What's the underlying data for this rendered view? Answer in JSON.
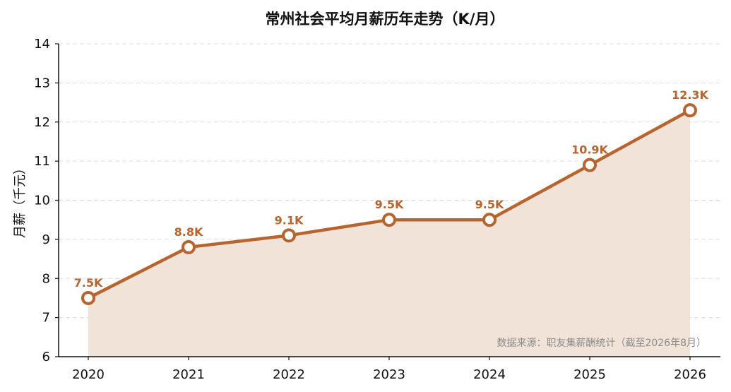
{
  "colors": {
    "line": "#B8642F",
    "fill": "#F1E3D7",
    "grid": "#DDDDDD",
    "axis": "#111111",
    "label": "#B8642F",
    "marker_fill": "#FFFFFF",
    "source": "#8A8A8A"
  },
  "chart_data": {
    "type": "line",
    "title": "常州社会平均月薪历年走势（K/月）",
    "xlabel": "",
    "ylabel": "月薪（千元）",
    "categories": [
      "2020",
      "2021",
      "2022",
      "2023",
      "2024",
      "2025",
      "2026"
    ],
    "series": [
      {
        "values": [
          7.5,
          8.8,
          9.1,
          9.5,
          9.5,
          10.9,
          12.3
        ],
        "labels": [
          "7.5K",
          "8.8K",
          "9.1K",
          "9.5K",
          "9.5K",
          "10.9K",
          "12.3K"
        ]
      }
    ],
    "ylim": [
      6,
      14
    ],
    "yticks": [
      6,
      7,
      8,
      9,
      10,
      11,
      12,
      13,
      14
    ],
    "grid": "horizontal-dashed",
    "area_fill": true,
    "source_note": "数据来源：职友集薪酬统计（截至2026年8月）"
  }
}
